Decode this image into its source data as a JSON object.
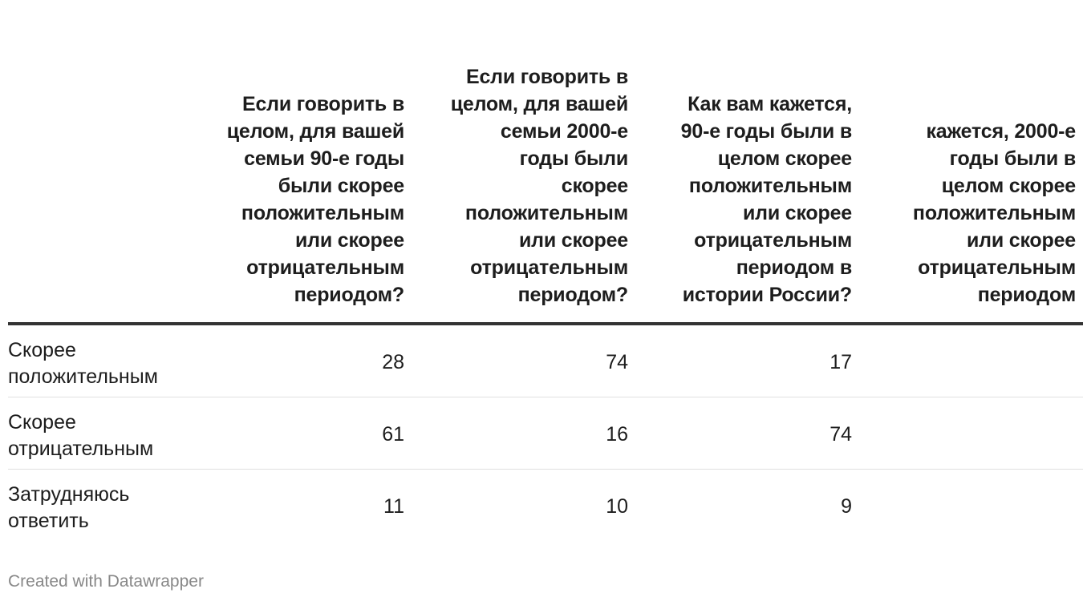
{
  "chart_data": {
    "type": "table",
    "columns": [
      "Если говорить в целом, для вашей семьи 90-е годы были скорее положительным или скорее отрицательным периодом?",
      "Если говорить в целом, для вашей семьи 2000-е годы были скорее положительным или скорее отрицательным периодом?",
      "Как вам кажется, 90-е годы были в целом скорее положительным или скорее отрицательным периодом в истории России?",
      "кажется, 2000-е годы были в целом скорее положительным или скорее отрицательным периодом"
    ],
    "rows": [
      {
        "label": "Скорее положительным",
        "values": [
          "28",
          "74",
          "17",
          ""
        ]
      },
      {
        "label": "Скорее отрицательным",
        "values": [
          "61",
          "16",
          "74",
          ""
        ]
      },
      {
        "label": "Затрудняюсь ответить",
        "values": [
          "11",
          "10",
          "9",
          ""
        ]
      }
    ]
  },
  "footer": {
    "credit": "Created with Datawrapper"
  },
  "colors": {
    "text": "#1d1d1d",
    "header_rule": "#333333",
    "row_rule": "#e0e0e0",
    "footer_text": "#888888"
  }
}
